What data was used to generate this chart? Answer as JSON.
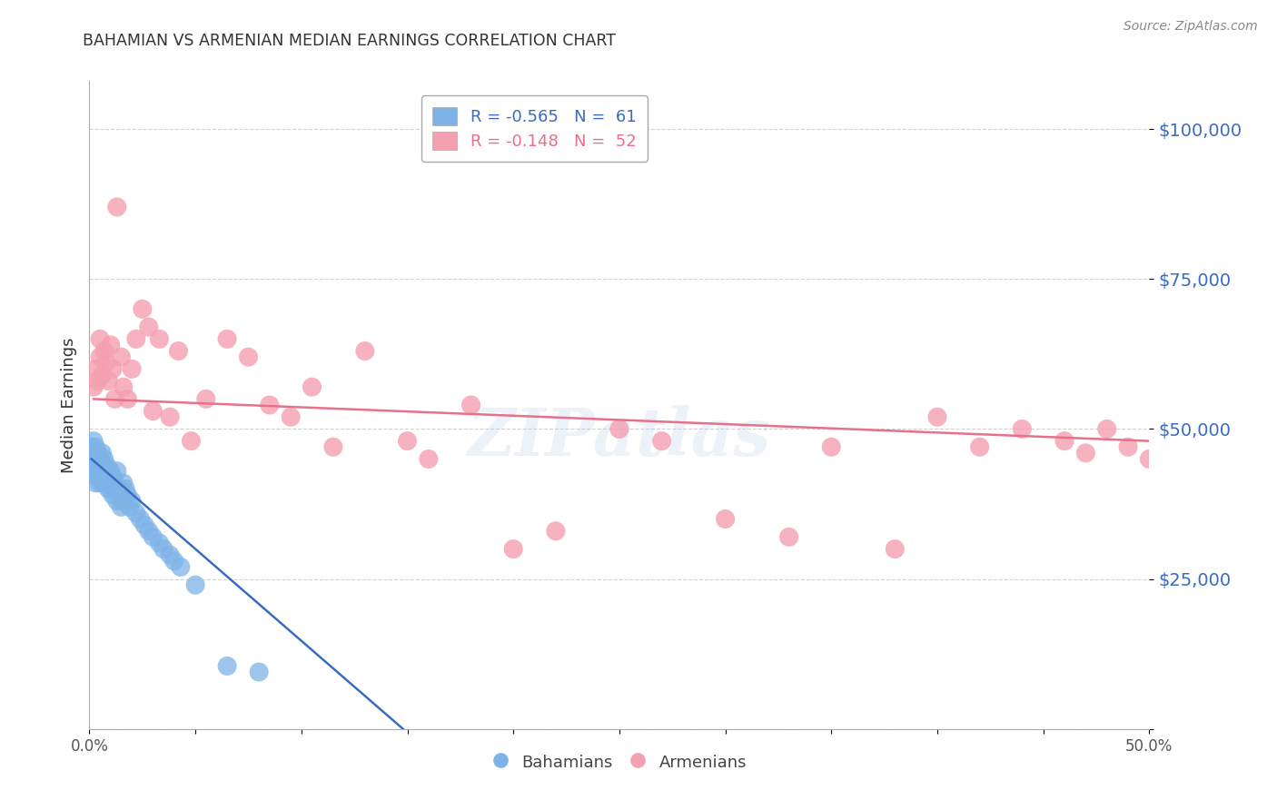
{
  "title": "BAHAMIAN VS ARMENIAN MEDIAN EARNINGS CORRELATION CHART",
  "source": "Source: ZipAtlas.com",
  "ylabel": "Median Earnings",
  "yticks": [
    0,
    25000,
    50000,
    75000,
    100000
  ],
  "ytick_labels": [
    "",
    "$25,000",
    "$50,000",
    "$75,000",
    "$100,000"
  ],
  "xlim": [
    0.0,
    0.5
  ],
  "ylim": [
    0,
    108000
  ],
  "background_color": "#ffffff",
  "grid_color": "#cccccc",
  "watermark": "ZIPatlas",
  "bahamian_color": "#7eb3e8",
  "armenian_color": "#f4a0b0",
  "bahamian_line_color": "#3a6bbf",
  "armenian_line_color": "#e8708a",
  "legend_bahamian_label": "R = -0.565   N =  61",
  "legend_armenian_label": "R = -0.148   N =  52",
  "legend_label_bahamians": "Bahamians",
  "legend_label_armenians": "Armenians",
  "bahamian_R": -0.565,
  "bahamian_N": 61,
  "armenian_R": -0.148,
  "armenian_N": 52,
  "bahamian_x": [
    0.001,
    0.001,
    0.002,
    0.002,
    0.002,
    0.003,
    0.003,
    0.003,
    0.003,
    0.004,
    0.004,
    0.004,
    0.004,
    0.005,
    0.005,
    0.005,
    0.005,
    0.006,
    0.006,
    0.006,
    0.006,
    0.007,
    0.007,
    0.007,
    0.008,
    0.008,
    0.008,
    0.009,
    0.009,
    0.009,
    0.01,
    0.01,
    0.01,
    0.011,
    0.011,
    0.012,
    0.012,
    0.013,
    0.013,
    0.014,
    0.015,
    0.015,
    0.016,
    0.016,
    0.017,
    0.018,
    0.019,
    0.02,
    0.022,
    0.024,
    0.026,
    0.028,
    0.03,
    0.033,
    0.035,
    0.038,
    0.04,
    0.043,
    0.05,
    0.065,
    0.08
  ],
  "bahamian_y": [
    44000,
    47000,
    46000,
    43000,
    48000,
    45000,
    43000,
    47000,
    41000,
    44000,
    42000,
    46000,
    43000,
    45000,
    42000,
    44000,
    41000,
    43000,
    46000,
    42000,
    44000,
    43000,
    41000,
    45000,
    42000,
    44000,
    41000,
    43000,
    40000,
    42000,
    41000,
    43000,
    40000,
    42000,
    39000,
    41000,
    40000,
    43000,
    38000,
    40000,
    39000,
    37000,
    41000,
    38000,
    40000,
    39000,
    37000,
    38000,
    36000,
    35000,
    34000,
    33000,
    32000,
    31000,
    30000,
    29000,
    28000,
    27000,
    24000,
    10500,
    9500
  ],
  "armenian_x": [
    0.002,
    0.003,
    0.004,
    0.005,
    0.005,
    0.006,
    0.007,
    0.008,
    0.009,
    0.01,
    0.011,
    0.012,
    0.013,
    0.015,
    0.016,
    0.018,
    0.02,
    0.022,
    0.025,
    0.028,
    0.03,
    0.033,
    0.038,
    0.042,
    0.048,
    0.055,
    0.065,
    0.075,
    0.085,
    0.095,
    0.105,
    0.115,
    0.13,
    0.15,
    0.16,
    0.18,
    0.2,
    0.22,
    0.25,
    0.27,
    0.3,
    0.33,
    0.35,
    0.38,
    0.4,
    0.42,
    0.44,
    0.46,
    0.47,
    0.48,
    0.49,
    0.5
  ],
  "armenian_y": [
    57000,
    60000,
    58000,
    65000,
    62000,
    59000,
    63000,
    61000,
    58000,
    64000,
    60000,
    55000,
    87000,
    62000,
    57000,
    55000,
    60000,
    65000,
    70000,
    67000,
    53000,
    65000,
    52000,
    63000,
    48000,
    55000,
    65000,
    62000,
    54000,
    52000,
    57000,
    47000,
    63000,
    48000,
    45000,
    54000,
    30000,
    33000,
    50000,
    48000,
    35000,
    32000,
    47000,
    30000,
    52000,
    47000,
    50000,
    48000,
    46000,
    50000,
    47000,
    45000
  ],
  "bah_line_x0": 0.001,
  "bah_line_x1": 0.148,
  "bah_line_y0": 45000,
  "bah_line_y1": 0,
  "arm_line_x0": 0.002,
  "arm_line_x1": 0.5,
  "arm_line_y0": 55000,
  "arm_line_y1": 48000
}
